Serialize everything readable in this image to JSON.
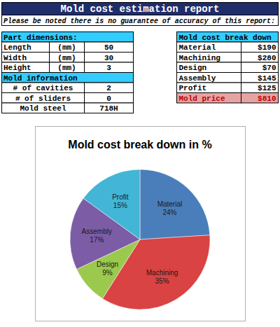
{
  "header": {
    "title": "Mold cost estimation report",
    "note": "Please be noted there is no guarantee of accuracy of this report:"
  },
  "part_table": {
    "title": "Part dimensions:",
    "rows": [
      [
        "Length",
        "(mm)",
        50
      ],
      [
        "Width",
        "(mm)",
        30
      ],
      [
        "Height",
        "(mm)",
        3
      ]
    ]
  },
  "mold_table": {
    "title": "Mold information",
    "rows": [
      [
        "# of cavities",
        2
      ],
      [
        "# of sliders",
        0
      ],
      [
        "Mold steel",
        "718H"
      ]
    ]
  },
  "cost_table": {
    "title": "Mold cost break down",
    "rows": [
      [
        "Material",
        "$190"
      ],
      [
        "Machining",
        "$280"
      ],
      [
        "Design",
        "$70"
      ],
      [
        "Assembly",
        "$145"
      ],
      [
        "Profit",
        "$125"
      ]
    ],
    "total": [
      "Mold price",
      "$810"
    ]
  },
  "chart_data": {
    "type": "pie",
    "title": "Mold cost break down in %",
    "categories": [
      "Material",
      "Machining",
      "Design",
      "Assembly",
      "Profit"
    ],
    "values": [
      24,
      35,
      9,
      17,
      15
    ],
    "value_labels": [
      "24%",
      "35%",
      "9%",
      "17%",
      "15%"
    ],
    "colors": [
      "#4a7ebb",
      "#d94343",
      "#9bc94d",
      "#7d5ca6",
      "#43b5d6"
    ],
    "data_labels": true
  }
}
